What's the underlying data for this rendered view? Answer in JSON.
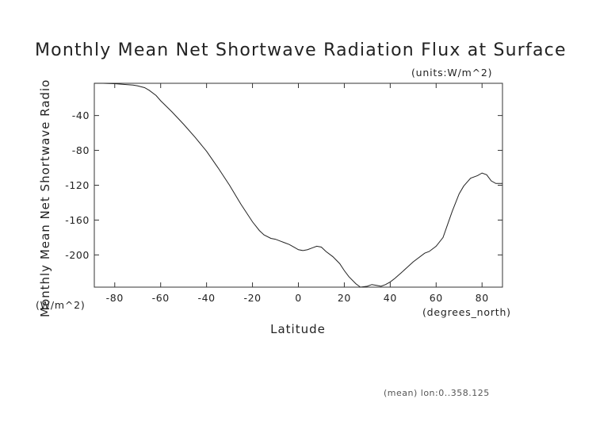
{
  "chart_data": {
    "type": "line",
    "title": "Monthly Mean Net Shortwave Radiation Flux at Surface",
    "units_note": "(units:W/m^2)",
    "xlabel": "Latitude",
    "xunits": "(degrees_north)",
    "ylabel": "Monthly Mean Net Shortwave Radio",
    "yunits": "(W/m^2)",
    "footnote": "(mean) lon:0..358.125",
    "xlim": [
      -88.9,
      88.9
    ],
    "ylim": [
      -237,
      -3
    ],
    "xticks": [
      -80,
      -60,
      -40,
      -20,
      0,
      20,
      40,
      60,
      80
    ],
    "yticks": [
      -40,
      -80,
      -120,
      -160,
      -200
    ],
    "grid": false,
    "series": [
      {
        "x": [
          -88.9,
          -85,
          -80,
          -75,
          -72,
          -70,
          -67,
          -65,
          -62,
          -60,
          -55,
          -50,
          -45,
          -40,
          -35,
          -30,
          -25,
          -20,
          -17,
          -15,
          -12,
          -10,
          -8,
          -6,
          -4,
          -2,
          0,
          2,
          4,
          6,
          8,
          10,
          12,
          15,
          18,
          20,
          22,
          25,
          27,
          30,
          32,
          34,
          36,
          38,
          40,
          42,
          45,
          50,
          55,
          57,
          60,
          63,
          65,
          67,
          70,
          72,
          75,
          78,
          80,
          82,
          84,
          86,
          88.9
        ],
        "y": [
          -3,
          -3,
          -3.5,
          -4.5,
          -5,
          -6,
          -8,
          -11,
          -17,
          -23,
          -36,
          -50,
          -65,
          -81,
          -100,
          -120,
          -142,
          -162,
          -172,
          -177,
          -181,
          -182,
          -184,
          -186,
          -188,
          -191,
          -194,
          -195,
          -194,
          -192,
          -190,
          -191,
          -196,
          -202,
          -210,
          -218,
          -225,
          -233,
          -237,
          -236,
          -234,
          -235,
          -236,
          -234,
          -231,
          -227,
          -220,
          -208,
          -198,
          -196,
          -190,
          -180,
          -165,
          -150,
          -130,
          -121,
          -112,
          -109,
          -106,
          -108,
          -115,
          -118,
          -118
        ]
      }
    ]
  }
}
